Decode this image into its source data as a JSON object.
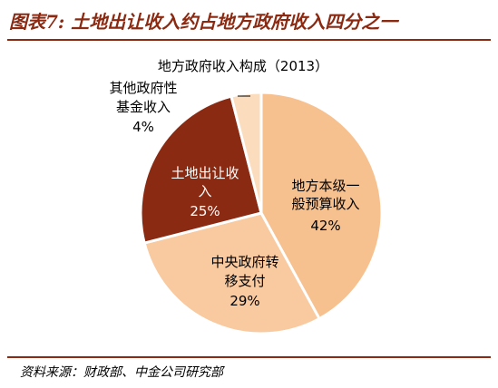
{
  "figure_title": "图表7: 土地出让收入约占地方政府收入四分之一",
  "source_note": "资料来源：财政部、中金公司研究部",
  "chart_data": {
    "type": "pie",
    "title": "地方政府收入构成（2013）",
    "slices": [
      {
        "name_lines": [
          "地方本级一",
          "般预算收入"
        ],
        "value": 42,
        "label": "42%",
        "color": "#f7c08f"
      },
      {
        "name_lines": [
          "中央政府转",
          "移支付"
        ],
        "value": 29,
        "label": "29%",
        "color": "#f9c99f"
      },
      {
        "name_lines": [
          "土地出让收",
          "入"
        ],
        "value": 25,
        "label": "25%",
        "color": "#8b2a12"
      },
      {
        "name_lines": [
          "其他政府性",
          "基金收入"
        ],
        "value": 4,
        "label": "4%",
        "color": "#fbdcbd"
      }
    ],
    "start": "12 o'clock",
    "direction": "clockwise",
    "legend": "none"
  }
}
